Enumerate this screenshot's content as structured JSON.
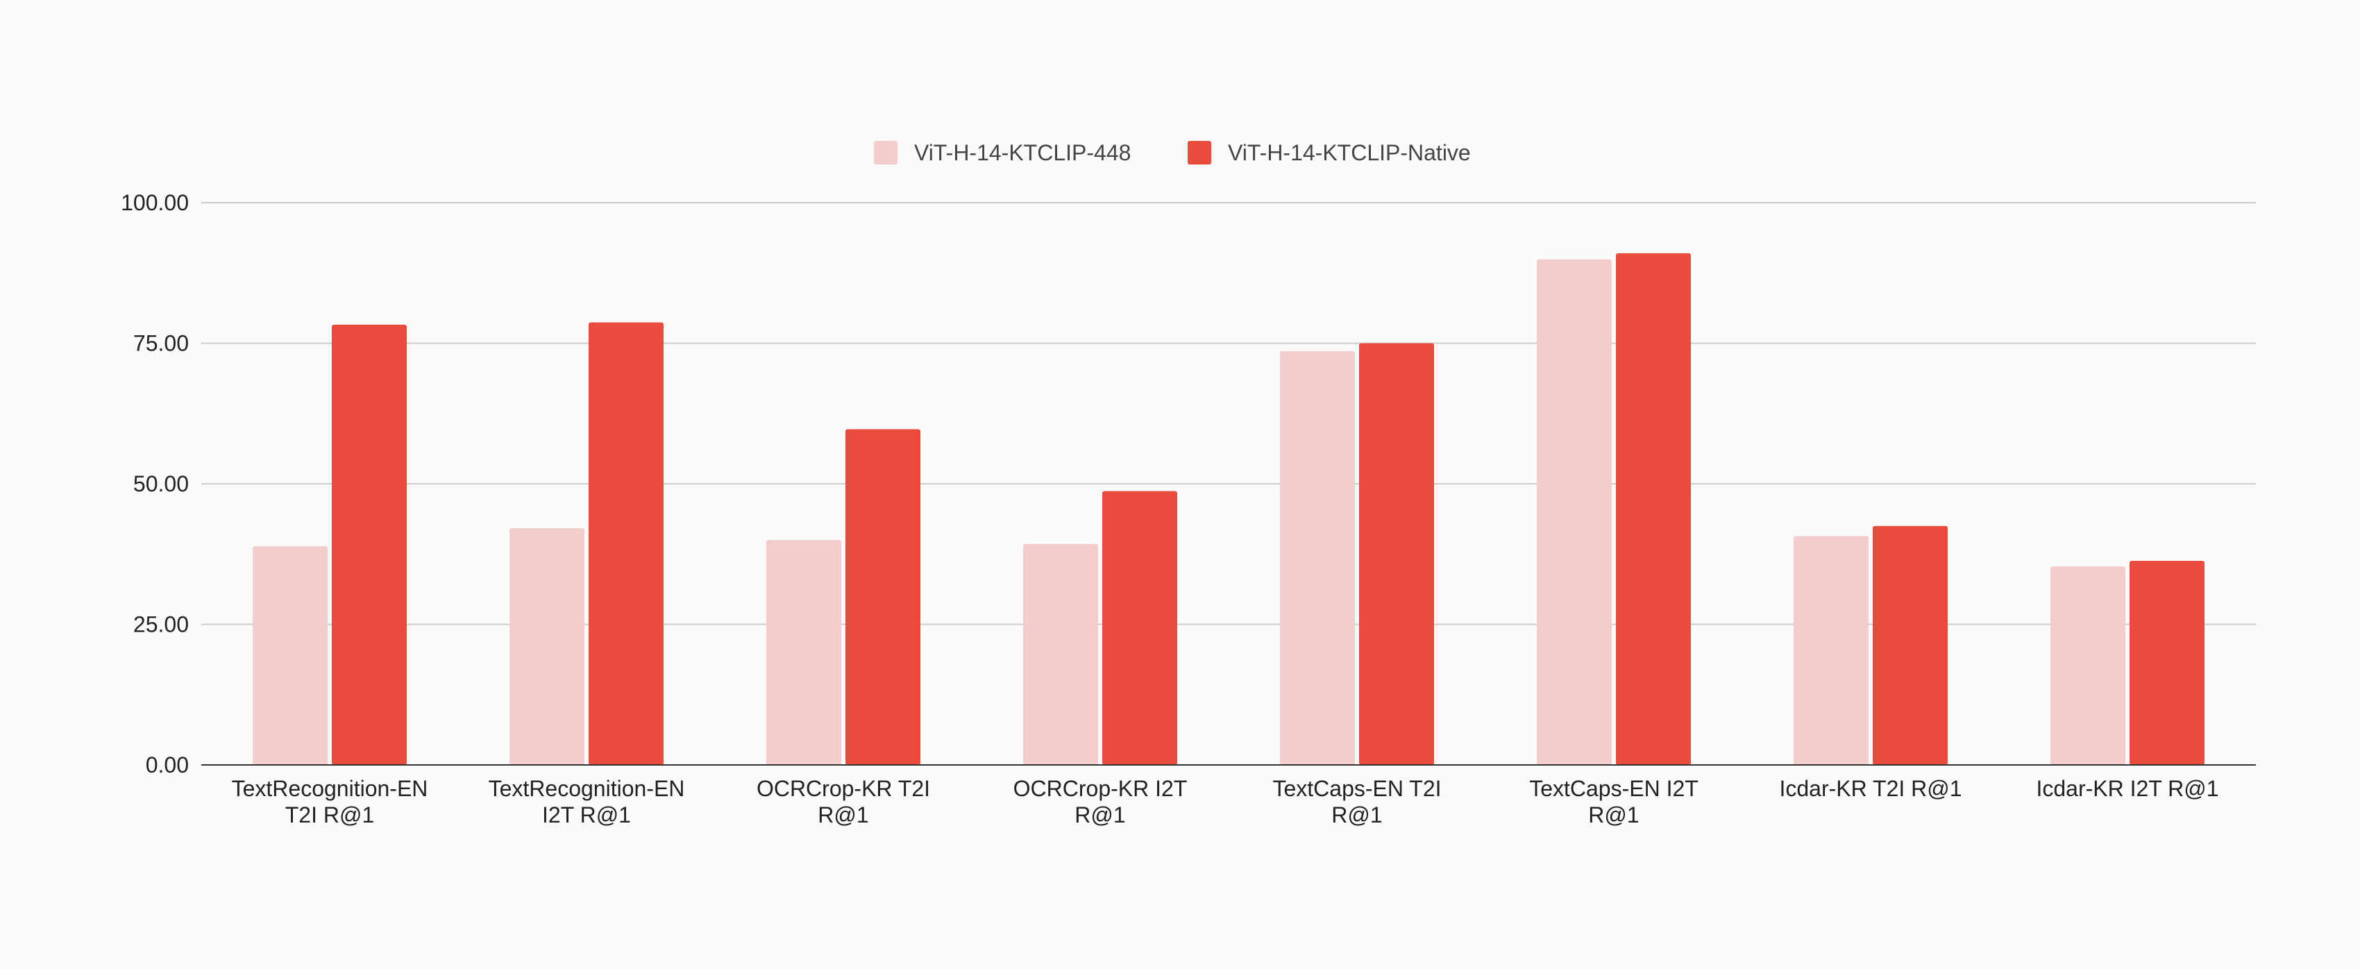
{
  "chart_data": {
    "type": "bar",
    "title": "",
    "xlabel": "",
    "ylabel": "",
    "ylim": [
      0,
      100
    ],
    "yticks": [
      "0.00",
      "25.00",
      "50.00",
      "75.00",
      "100.00"
    ],
    "grid": true,
    "legend_position": "top-center",
    "categories": [
      [
        "TextRecognition-EN",
        "T2I R@1"
      ],
      [
        "TextRecognition-EN",
        "I2T R@1"
      ],
      [
        "OCRCrop-KR T2I",
        "R@1"
      ],
      [
        "OCRCrop-KR I2T",
        "R@1"
      ],
      [
        "TextCaps-EN T2I",
        "R@1"
      ],
      [
        "TextCaps-EN I2T",
        "R@1"
      ],
      [
        "Icdar-KR T2I R@1"
      ],
      [
        "Icdar-KR I2T R@1"
      ]
    ],
    "series": [
      {
        "name": "ViT-H-14-KTCLIP-448",
        "color": "#f4cccc",
        "values": [
          38.9,
          42.1,
          40.0,
          39.3,
          73.6,
          89.9,
          40.7,
          35.3
        ]
      },
      {
        "name": "ViT-H-14-KTCLIP-Native",
        "color": "#e94c3c",
        "values": [
          78.3,
          78.7,
          59.7,
          48.7,
          75.0,
          91.0,
          42.5,
          36.3
        ]
      }
    ]
  }
}
